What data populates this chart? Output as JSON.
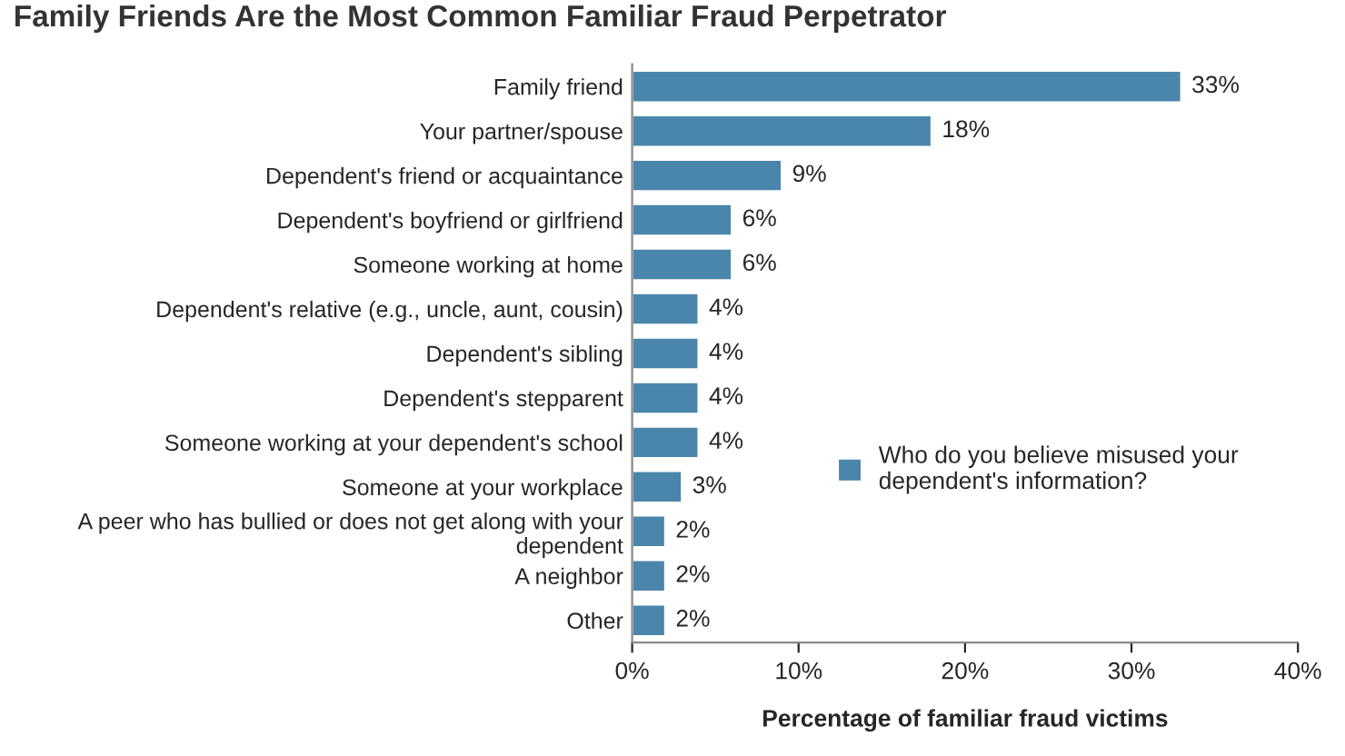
{
  "chart_data": {
    "type": "bar",
    "orientation": "horizontal",
    "title": "Family Friends Are the Most Common Familiar Fraud Perpetrator",
    "xlabel": "Percentage of familiar fraud victims",
    "categories": [
      "Family friend",
      "Your partner/spouse",
      "Dependent's friend or acquaintance",
      "Dependent's boyfriend or girlfriend",
      "Someone working at home",
      "Dependent's relative (e.g., uncle, aunt, cousin)",
      "Dependent's sibling",
      "Dependent's stepparent",
      "Someone working at your dependent's school",
      "Someone at your workplace",
      "A peer who has bullied or does not get along with your dependent",
      "A neighbor",
      "Other"
    ],
    "series": [
      {
        "name": "Who do you believe misused your dependent's information?",
        "color": "#4a86ab",
        "values": [
          33,
          18,
          9,
          6,
          6,
          4,
          4,
          4,
          4,
          3,
          2,
          2,
          2
        ]
      }
    ],
    "value_labels": [
      "33%",
      "18%",
      "9%",
      "6%",
      "6%",
      "4%",
      "4%",
      "4%",
      "4%",
      "3%",
      "2%",
      "2%",
      "2%"
    ],
    "xlim": [
      0,
      40
    ],
    "xticks": [
      {
        "value": 0,
        "label": "0%"
      },
      {
        "value": 10,
        "label": "10%"
      },
      {
        "value": 20,
        "label": "20%"
      },
      {
        "value": 30,
        "label": "30%"
      },
      {
        "value": 40,
        "label": "40%"
      }
    ],
    "grid": false,
    "legend": "right"
  }
}
